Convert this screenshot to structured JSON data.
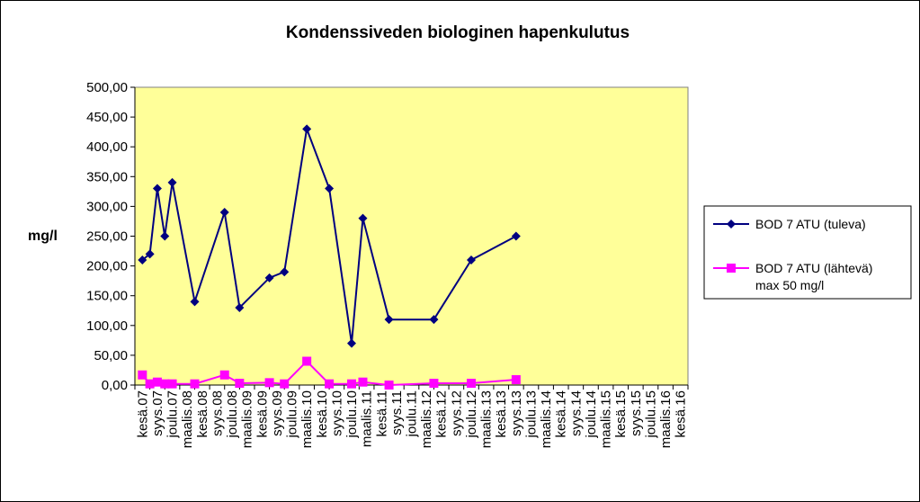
{
  "chart_data": {
    "type": "line",
    "title": "Kondenssiveden biologinen hapenkulutus",
    "ylabel": "mg/l",
    "ylim": [
      0,
      500
    ],
    "ytick_step": 50,
    "y_tick_labels": [
      "0,00",
      "50,00",
      "100,00",
      "150,00",
      "200,00",
      "250,00",
      "300,00",
      "350,00",
      "400,00",
      "450,00",
      "500,00"
    ],
    "plot_color": "#FFFF99",
    "categories": [
      "kesä.07",
      "syys.07",
      "joulu.07",
      "maalis.08",
      "kesä.08",
      "syys.08",
      "joulu.08",
      "maalis.09",
      "kesä.09",
      "syys.09",
      "joulu.09",
      "maalis.10",
      "kesä.10",
      "syys.10",
      "joulu.10",
      "maalis.11",
      "kesä.11",
      "syys.11",
      "joulu.11",
      "maalis.12",
      "kesä.12",
      "syys.12",
      "joulu.12",
      "maalis.13",
      "kesä.13",
      "syys.13",
      "joulu.13",
      "maalis.14",
      "kesä.14",
      "syys.14",
      "joulu.14",
      "maalis.15",
      "kesä.15",
      "syys.15",
      "joulu.15",
      "maalis.16",
      "kesä.16"
    ],
    "series": [
      {
        "name": "BOD 7 ATU (tuleva)",
        "color": "#000080",
        "marker": "diamond",
        "points": [
          [
            0,
            210
          ],
          [
            0.5,
            220
          ],
          [
            1,
            330
          ],
          [
            1.5,
            250
          ],
          [
            2,
            340
          ],
          [
            3.5,
            140
          ],
          [
            5.5,
            290
          ],
          [
            6.5,
            130
          ],
          [
            8.5,
            180
          ],
          [
            9.5,
            190
          ],
          [
            11,
            430
          ],
          [
            12.5,
            330
          ],
          [
            14,
            70
          ],
          [
            14.75,
            280
          ],
          [
            16.5,
            110
          ],
          [
            19.5,
            110
          ],
          [
            22,
            210
          ],
          [
            25,
            250
          ]
        ]
      },
      {
        "name": "BOD 7 ATU (lähtevä)",
        "name_line2": "max 50 mg/l",
        "color": "#FF00FF",
        "marker": "square",
        "points": [
          [
            0,
            17
          ],
          [
            0.5,
            2
          ],
          [
            1,
            5
          ],
          [
            1.5,
            2
          ],
          [
            2,
            2
          ],
          [
            3.5,
            2
          ],
          [
            5.5,
            17
          ],
          [
            6.5,
            3
          ],
          [
            8.5,
            4
          ],
          [
            9.5,
            2
          ],
          [
            11,
            40
          ],
          [
            12.5,
            2
          ],
          [
            14,
            2
          ],
          [
            14.75,
            5
          ],
          [
            16.5,
            0
          ],
          [
            19.5,
            3
          ],
          [
            22,
            3
          ],
          [
            25,
            9
          ]
        ]
      }
    ],
    "legend": "right"
  }
}
